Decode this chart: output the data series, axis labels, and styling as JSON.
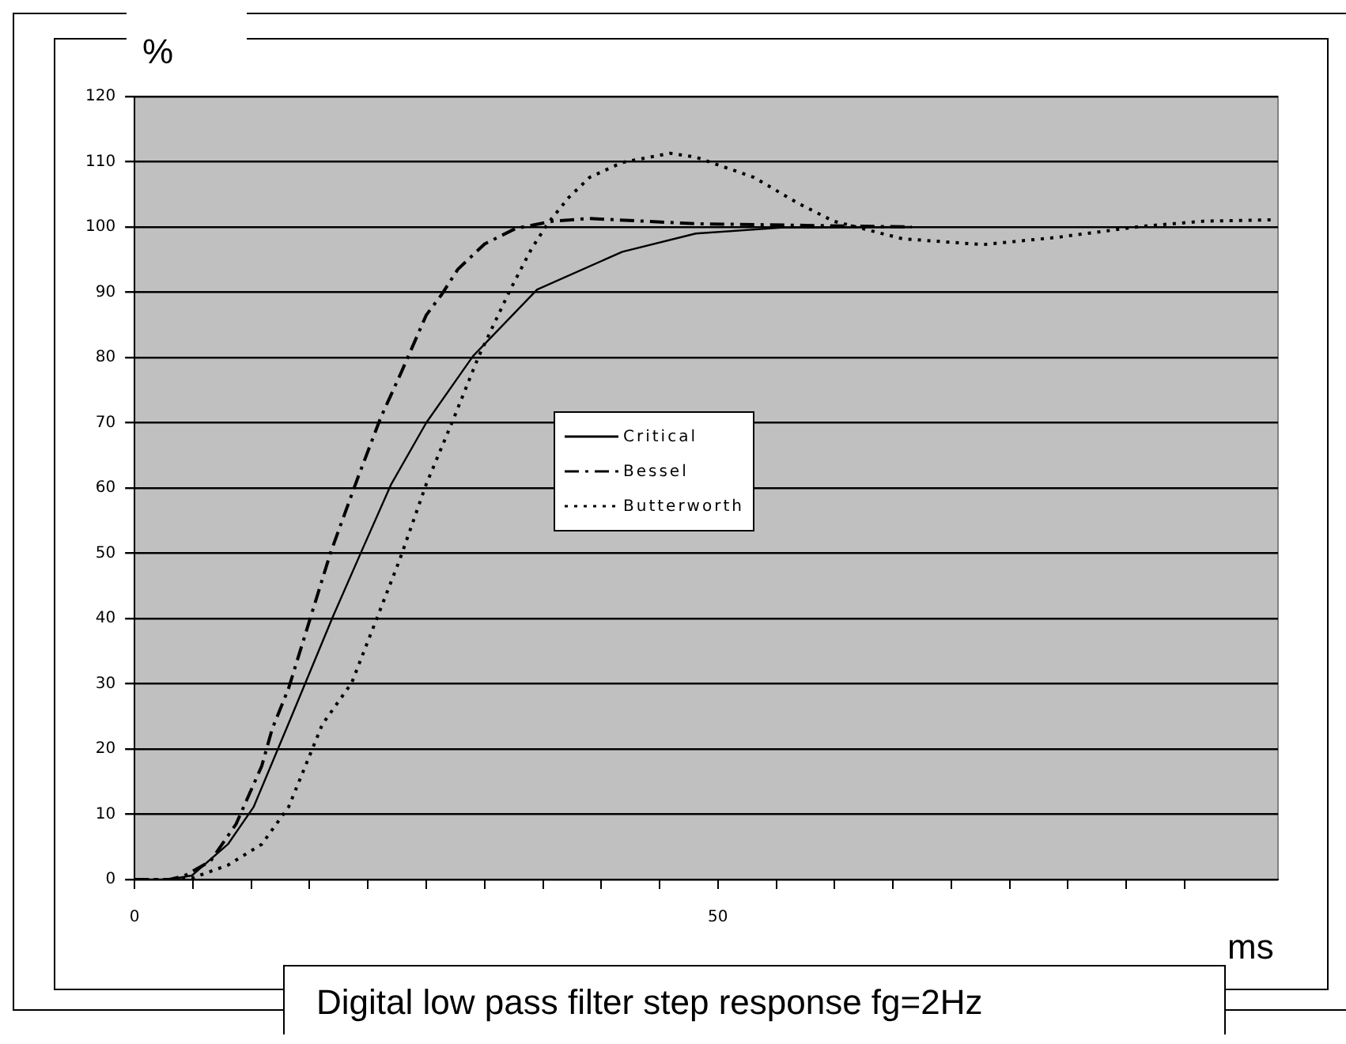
{
  "chart_data": {
    "type": "line",
    "title": "Digital low pass filter step response fg=2Hz",
    "xlabel": "ms",
    "ylabel": "%",
    "xlim": [
      0,
      98
    ],
    "xticks": [
      0,
      {
        "value": 5,
        "label": null
      },
      {
        "value": 10,
        "label": null
      },
      {
        "value": 15,
        "label": null
      },
      {
        "value": 20,
        "label": null
      },
      {
        "value": 25,
        "label": null
      },
      {
        "value": 30,
        "label": null
      },
      {
        "value": 35,
        "label": null
      },
      {
        "value": 40,
        "label": null
      },
      {
        "value": 45,
        "label": null
      },
      50,
      {
        "value": 55,
        "label": null
      },
      {
        "value": 60,
        "label": null
      },
      {
        "value": 65,
        "label": null
      },
      {
        "value": 70,
        "label": null
      },
      {
        "value": 75,
        "label": null
      },
      {
        "value": 80,
        "label": null
      },
      {
        "value": 85,
        "label": null
      },
      {
        "value": 90,
        "label": null
      }
    ],
    "ylim": [
      0,
      120
    ],
    "yticks": [
      0,
      10,
      20,
      30,
      40,
      50,
      60,
      70,
      80,
      90,
      100,
      110,
      120
    ],
    "grid": "y",
    "legend": "center",
    "marker": "none",
    "series": [
      {
        "name": "Critical",
        "color": "#000000",
        "line_style": "solid",
        "x": [
          0,
          3,
          4.9,
          8,
          10.2,
          13.2,
          17,
          19.5,
          22,
          25,
          29,
          34.5,
          41.8,
          48.1,
          55.4,
          66.6
        ],
        "values": [
          0,
          0,
          0.6,
          5.4,
          11.1,
          23.9,
          40.3,
          50.5,
          60.6,
          70,
          80.2,
          90.4,
          96.2,
          99,
          99.9,
          100
        ]
      },
      {
        "name": "Bessel",
        "color": "#000000",
        "line_style": "dashed",
        "x": [
          0,
          3,
          4.3,
          6.5,
          8.7,
          10.9,
          11.8,
          13.2,
          16.8,
          19.1,
          21.1,
          22.9,
          25,
          26.3,
          27.7,
          30,
          32.7,
          35.9,
          39,
          43.6,
          48.1,
          66.6
        ],
        "values": [
          0,
          0,
          0.6,
          2.8,
          8.5,
          17.4,
          23.1,
          29.3,
          50.1,
          61.4,
          70.8,
          77.9,
          86.5,
          89.6,
          93.5,
          97.4,
          99.8,
          100.9,
          101.3,
          100.9,
          100.5,
          100
        ]
      },
      {
        "name": "Butterworth",
        "color": "#000000",
        "line_style": "dotted",
        "x": [
          0,
          3,
          4.9,
          8,
          10.9,
          13.2,
          16.1,
          18.6,
          22.7,
          25,
          27.2,
          29.5,
          32.2,
          34,
          35.4,
          37.2,
          39,
          41.8,
          45.9,
          48.1,
          53.1,
          56.8,
          59.9,
          65.8,
          72.7,
          79,
          86.3,
          91.7,
          97.6
        ],
        "values": [
          0,
          0,
          0.2,
          2.2,
          5.4,
          11.1,
          23.8,
          30.1,
          48.9,
          60.6,
          70,
          80.2,
          90.4,
          96.6,
          100.5,
          104.5,
          107.6,
          109.9,
          111.3,
          110.7,
          107.6,
          103.7,
          100.9,
          98.2,
          97.3,
          98.4,
          100.1,
          100.9,
          101.1
        ]
      }
    ]
  }
}
